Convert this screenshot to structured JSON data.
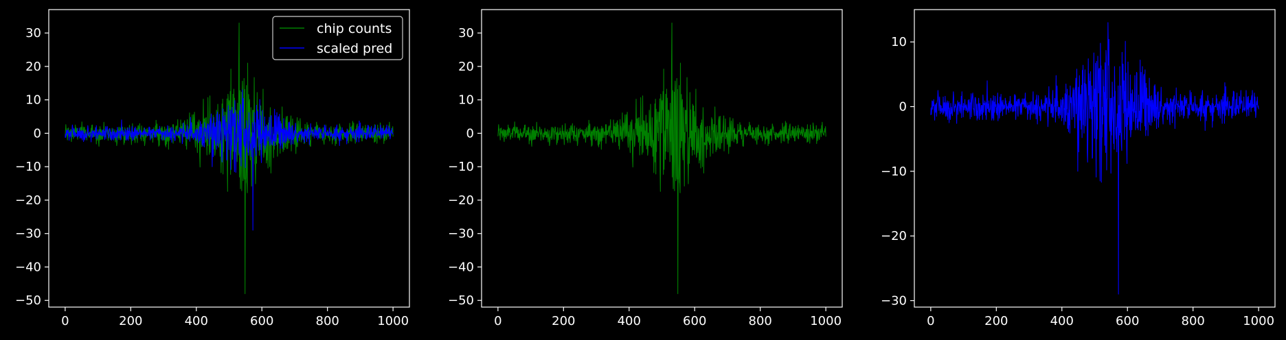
{
  "figure": {
    "background": "#000000",
    "axes_color": "#ffffff"
  },
  "chart_data": [
    {
      "type": "line",
      "title": "",
      "xlabel": "",
      "ylabel": "",
      "xlim": [
        -50,
        1050
      ],
      "ylim": [
        -52,
        37
      ],
      "xticks": [
        0,
        200,
        400,
        600,
        800,
        1000
      ],
      "yticks": [
        -50,
        -40,
        -30,
        -20,
        -10,
        0,
        10,
        20,
        30
      ],
      "grid": false,
      "legend": {
        "position": "top-right",
        "entries": [
          {
            "label": "chip counts",
            "color": "#008000"
          },
          {
            "label": "scaled pred",
            "color": "#0000ff"
          }
        ]
      },
      "series": [
        {
          "name": "chip counts",
          "color": "#008000",
          "x_range": [
            0,
            1000
          ],
          "n_points": 1000,
          "summary": {
            "max": 33,
            "max_at": 530,
            "min": -48,
            "min_at": 548,
            "typical_amplitude_edges": 2,
            "typical_amplitude_center": 14,
            "center": 540
          }
        },
        {
          "name": "scaled pred",
          "color": "#0000ff",
          "x_range": [
            0,
            1000
          ],
          "n_points": 1000,
          "summary": {
            "max": 13,
            "max_at": 540,
            "min": -29,
            "min_at": 572,
            "typical_amplitude_edges": 1.5,
            "typical_amplitude_center": 8,
            "center": 540
          }
        }
      ]
    },
    {
      "type": "line",
      "title": "",
      "xlabel": "",
      "ylabel": "",
      "xlim": [
        -50,
        1050
      ],
      "ylim": [
        -52,
        37
      ],
      "xticks": [
        0,
        200,
        400,
        600,
        800,
        1000
      ],
      "yticks": [
        -50,
        -40,
        -30,
        -20,
        -10,
        0,
        10,
        20,
        30
      ],
      "grid": false,
      "series": [
        {
          "name": "chip counts",
          "color": "#008000",
          "x_range": [
            0,
            1000
          ],
          "n_points": 1000,
          "summary": {
            "max": 33,
            "max_at": 530,
            "min": -48,
            "min_at": 548,
            "typical_amplitude_edges": 2,
            "typical_amplitude_center": 14,
            "center": 540
          }
        }
      ]
    },
    {
      "type": "line",
      "title": "",
      "xlabel": "",
      "ylabel": "",
      "xlim": [
        -50,
        1050
      ],
      "ylim": [
        -31,
        15
      ],
      "xticks": [
        0,
        200,
        400,
        600,
        800,
        1000
      ],
      "yticks": [
        -30,
        -20,
        -10,
        0,
        10
      ],
      "grid": false,
      "series": [
        {
          "name": "scaled pred",
          "color": "#0000ff",
          "x_range": [
            0,
            1000
          ],
          "n_points": 1000,
          "summary": {
            "max": 13,
            "max_at": 540,
            "min": -29,
            "min_at": 572,
            "typical_amplitude_edges": 1.5,
            "typical_amplitude_center": 8,
            "center": 540
          }
        }
      ]
    }
  ]
}
